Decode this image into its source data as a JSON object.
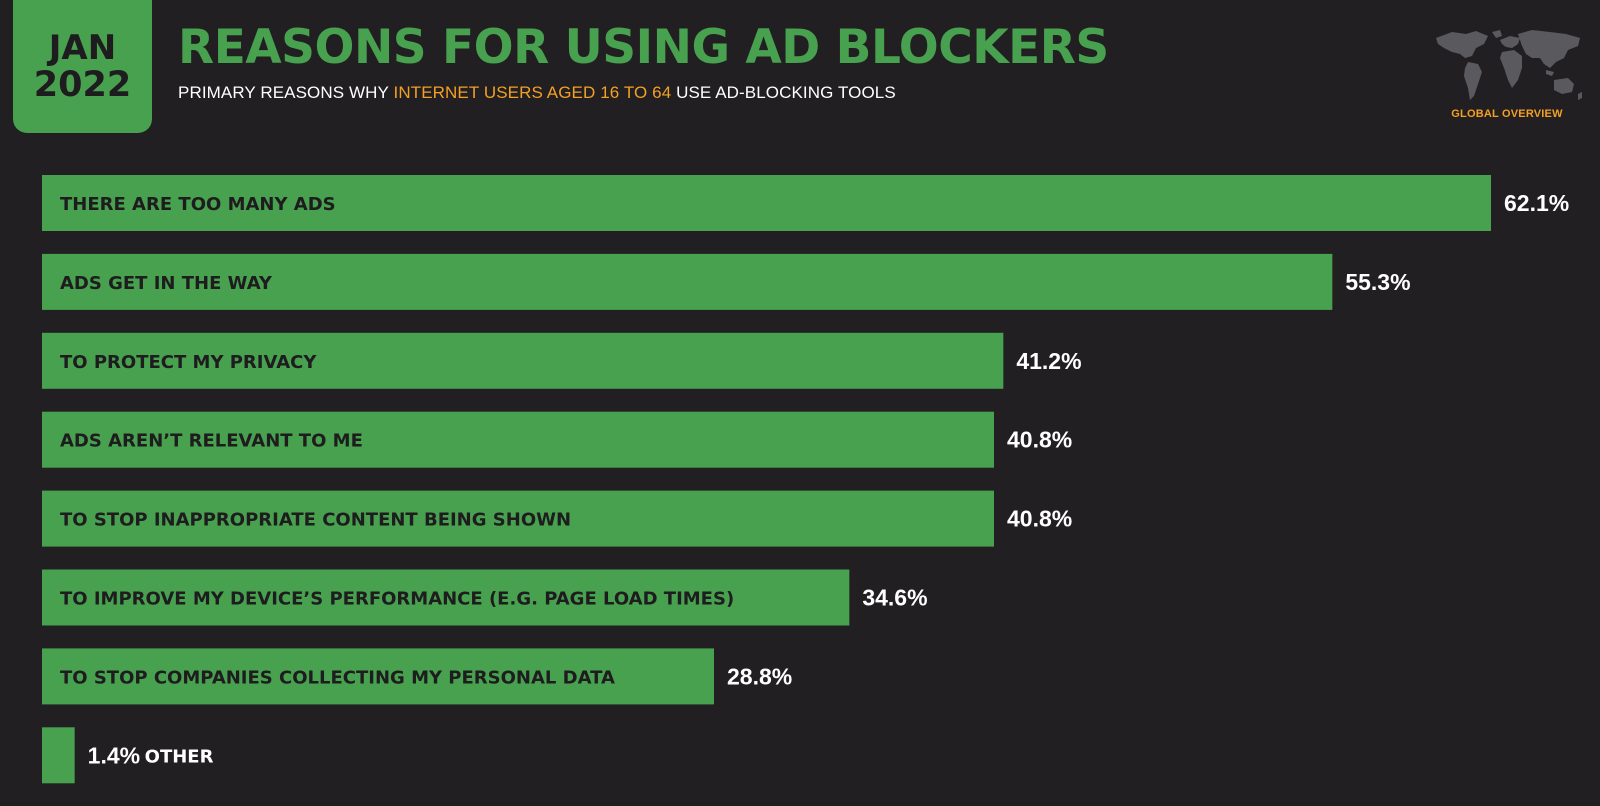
{
  "badge": {
    "month": "JAN",
    "year": "2022"
  },
  "header": {
    "title": "REASONS FOR USING AD BLOCKERS",
    "subtitle_before": "PRIMARY REASONS WHY",
    "subtitle_highlight": "INTERNET USERS AGED 16 TO 64",
    "subtitle_after": "USE AD-BLOCKING TOOLS"
  },
  "globe": {
    "icon": "world-map-icon",
    "label": "GLOBAL OVERVIEW"
  },
  "colors": {
    "background": "#221f22",
    "bar": "#47a14f",
    "highlight": "#f3a024",
    "text_dark": "#1e1c1e",
    "text_light": "#ffffff"
  },
  "chart_data": {
    "type": "bar",
    "orientation": "horizontal",
    "categories": [
      "THERE ARE TOO MANY ADS",
      "ADS GET IN THE WAY",
      "TO PROTECT MY PRIVACY",
      "ADS AREN’T RELEVANT TO ME",
      "TO STOP INAPPROPRIATE CONTENT BEING SHOWN",
      "TO IMPROVE MY DEVICE’S PERFORMANCE (E.G. PAGE LOAD TIMES)",
      "TO STOP COMPANIES COLLECTING MY PERSONAL DATA",
      "OTHER"
    ],
    "values": [
      62.1,
      55.3,
      41.2,
      40.8,
      40.8,
      34.6,
      28.8,
      1.4
    ],
    "value_labels": [
      "62.1%",
      "55.3%",
      "41.2%",
      "40.8%",
      "40.8%",
      "34.6%",
      "28.8%",
      "1.4%"
    ],
    "unit": "%",
    "xlim": [
      0,
      62.1
    ],
    "grid": false,
    "legend": "none"
  }
}
